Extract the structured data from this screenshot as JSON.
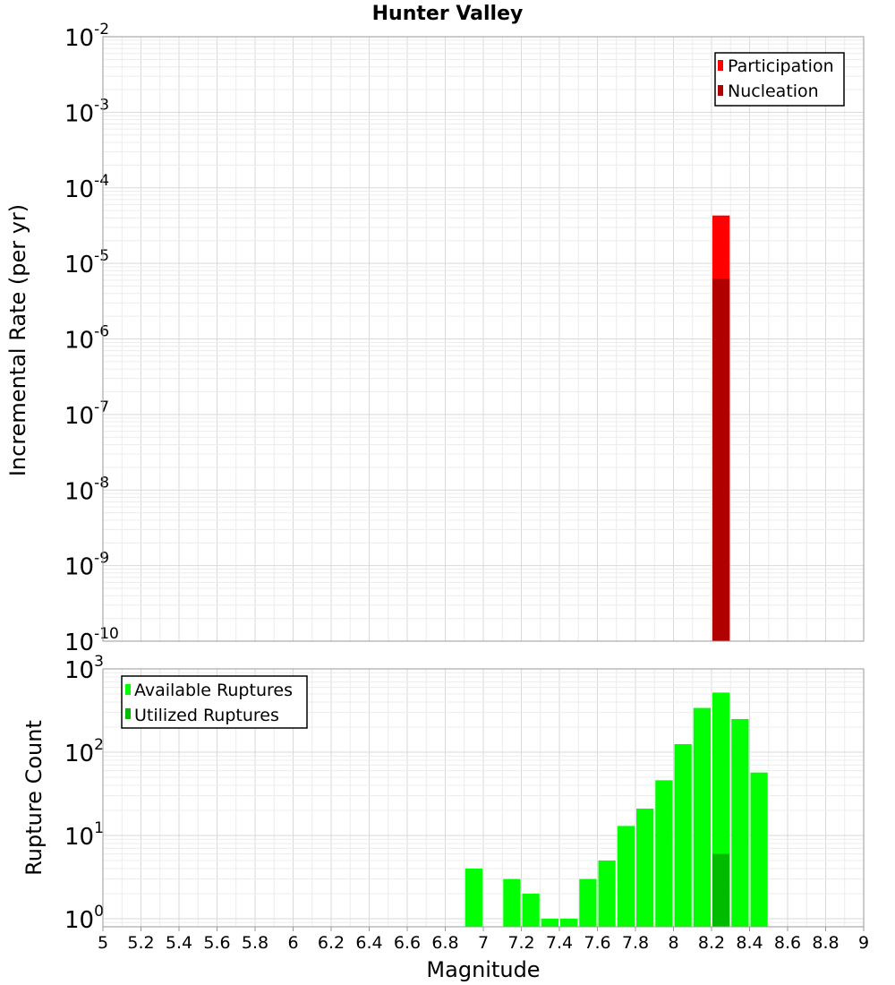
{
  "chart_data": {
    "title": "Hunter Valley",
    "xlabel": "Magnitude",
    "xlim": [
      5,
      9
    ],
    "x_ticks": [
      "5",
      "5.2",
      "5.4",
      "5.6",
      "5.8",
      "6",
      "6.2",
      "6.4",
      "6.6",
      "6.8",
      "7",
      "7.2",
      "7.4",
      "7.6",
      "7.8",
      "8",
      "8.2",
      "8.4",
      "8.6",
      "8.8",
      "9"
    ],
    "bin_width": 0.1,
    "panels": [
      {
        "type": "bar",
        "ylabel": "Incremental Rate (per yr)",
        "yscale": "log",
        "ylim": [
          1e-10,
          0.01
        ],
        "y_tick_base": "10",
        "y_tick_exponents": [
          "-10",
          "-9",
          "-8",
          "-7",
          "-6",
          "-5",
          "-4",
          "-3",
          "-2"
        ],
        "legend_position": "top-right",
        "series": [
          {
            "name": "Participation",
            "color": "#ff0000",
            "x": [
              8.25
            ],
            "values": [
              4.3e-05
            ]
          },
          {
            "name": "Nucleation",
            "color": "#b00000",
            "x": [
              8.25
            ],
            "values": [
              6.3e-06
            ]
          }
        ]
      },
      {
        "type": "bar",
        "ylabel": "Rupture Count",
        "yscale": "log",
        "ylim": [
          0.8,
          1000
        ],
        "y_tick_base": "10",
        "y_tick_exponents": [
          "0",
          "1",
          "2",
          "3"
        ],
        "legend_position": "top-left",
        "series": [
          {
            "name": "Available Ruptures",
            "color": "#00ff00",
            "x": [
              6.95,
              7.15,
              7.25,
              7.35,
              7.45,
              7.55,
              7.65,
              7.75,
              7.85,
              7.95,
              8.05,
              8.15,
              8.25,
              8.35,
              8.45
            ],
            "values": [
              4,
              3,
              2,
              1,
              1,
              3,
              5,
              13,
              21,
              46,
              125,
              340,
              520,
              250,
              57
            ]
          },
          {
            "name": "Utilized Ruptures",
            "color": "#00bb00",
            "x": [
              8.25
            ],
            "values": [
              6
            ]
          }
        ]
      }
    ]
  }
}
